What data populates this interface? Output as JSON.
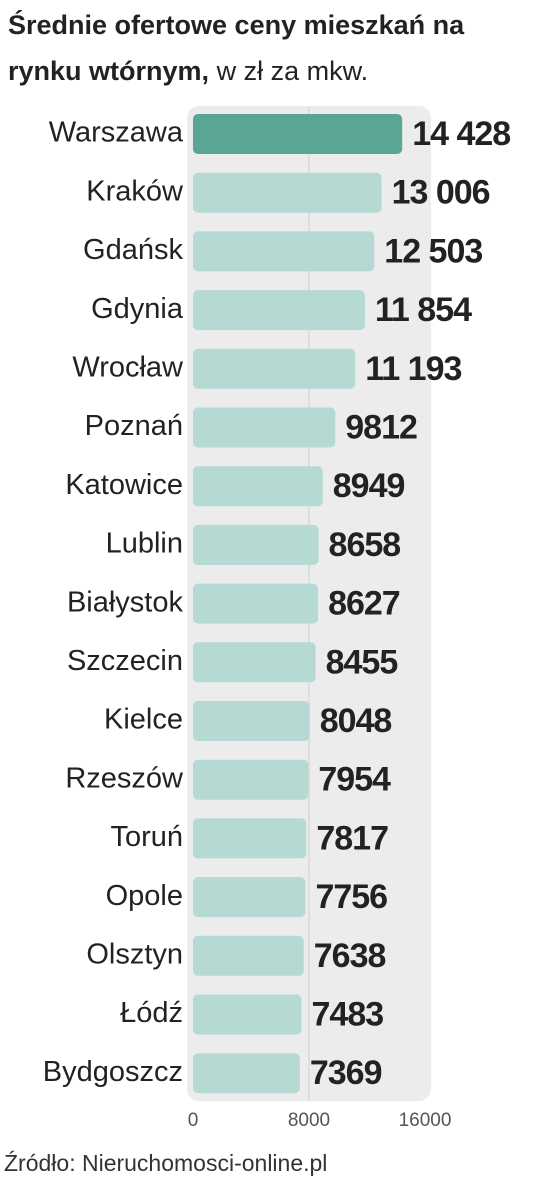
{
  "chart_data": {
    "type": "bar",
    "orientation": "horizontal",
    "title": "Średnie ofertowe ceny mieszkań na rynku wtórnym,",
    "subtitle": "w zł za mkw.",
    "source": "Źródło: Nieruchomosci-online.pl",
    "categories": [
      "Warszawa",
      "Kraków",
      "Gdańsk",
      "Gdynia",
      "Wrocław",
      "Poznań",
      "Katowice",
      "Lublin",
      "Białystok",
      "Szczecin",
      "Kielce",
      "Rzeszów",
      "Toruń",
      "Opole",
      "Olsztyn",
      "Łódź",
      "Bydgoszcz"
    ],
    "values": [
      14428,
      13006,
      12503,
      11854,
      11193,
      9812,
      8949,
      8658,
      8627,
      8455,
      8048,
      7954,
      7817,
      7756,
      7638,
      7483,
      7369
    ],
    "value_labels": [
      "14 428",
      "13 006",
      "12 503",
      "11 854",
      "11 193",
      "9812",
      "8949",
      "8658",
      "8627",
      "8455",
      "8048",
      "7954",
      "7817",
      "7756",
      "7638",
      "7483",
      "7369"
    ],
    "colors": [
      "#5ba596",
      "#b4dad3",
      "#b4dad3",
      "#b4dad3",
      "#b4dad3",
      "#b4dad3",
      "#b4dad3",
      "#b4dad3",
      "#b4dad3",
      "#b4dad3",
      "#b4dad3",
      "#b4dad3",
      "#b4dad3",
      "#b4dad3",
      "#b4dad3",
      "#b4dad3",
      "#b4dad3"
    ],
    "xlim": [
      0,
      16000
    ],
    "xticks": [
      0,
      8000,
      16000
    ],
    "grid": true
  }
}
